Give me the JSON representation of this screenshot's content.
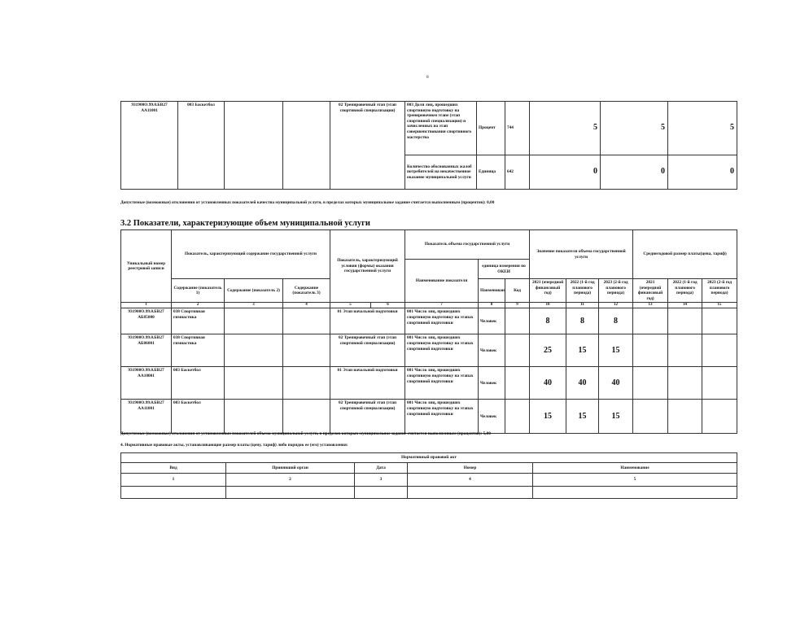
{
  "page_number": "8",
  "quality_table": {
    "row": {
      "reg_number": "931900О.99.0.БВ27 АА11001",
      "content1": "003 Баскетбол",
      "condition": "02 Тренировочный этап (этап спортивной специализации)",
      "indicators": [
        {
          "name": "003 Доля лиц, прошедших спортивную подготовку на тренировочном этапе (этап спортивной специализации) и зачисленных на этап совершенствования спортивного мастерства",
          "unit": "Процент",
          "code": "744",
          "v2021": "5",
          "v2022": "5",
          "v2023": "5"
        },
        {
          "name": "Количество обоснованных жалоб потребителей на некачественное оказание муниципальной услуги",
          "unit": "Единица",
          "code": "642",
          "v2021": "0",
          "v2022": "0",
          "v2023": "0"
        }
      ]
    },
    "deviation_note": "Допустимые (возможные) отклонения от установленных показателей качества муниципальной услуги, в пределах которых муниципальное задание считается выполненным (процентов): 0,00"
  },
  "volume_section": {
    "title": "3.2 Показатели, характеризующие объем муниципальной услуги",
    "headers": {
      "reg_number": "Уникальный номер реестровой записи",
      "content_group": "Показатель, характеризующий содержание государственной услуги",
      "content1": "Содержание (показатель 1)",
      "content2": "Содержание (показатель 2)",
      "content3": "Содержание (показатель 3)",
      "condition_group": "Показатель, характеризующий условия (формы) оказания государственной услуги",
      "volume_group": "Показатель объема государственной услуги",
      "indicator_name": "Наименование показателя",
      "unit_group": "единица измерения по ОКЕИ",
      "unit_name": "Наименование",
      "unit_code": "Код",
      "value_group": "Значение показателя объема государственной услуги",
      "fee_group": "Среднегодовой размер платы(цена, тариф)",
      "y2021": "2021 (очередной финансовый год)",
      "y2022": "2022 (1-й год планового периода)",
      "y2023": "2023 (2-й год планового периода)",
      "col_numbers": [
        "1",
        "2",
        "3",
        "4",
        "5",
        "6",
        "7",
        "8",
        "9",
        "10",
        "11",
        "12",
        "13",
        "14",
        "15"
      ]
    },
    "rows": [
      {
        "reg_number": "931900О.99.0.БВ27 АБ85000",
        "content1": "038 Спортивная гимнастика",
        "condition": "01 Этап начальной подготовки",
        "indicator": "001 Число лиц, прошедших спортивную подготовку на этапах спортивной подготовки",
        "unit": "Человек",
        "v2021": "8",
        "v2022": "8",
        "v2023": "8"
      },
      {
        "reg_number": "931900О.99.0.БВ27 АБ86001",
        "content1": "038 Спортивная гимнастика",
        "condition": "02 Тренировочный этап (этап спортивной специализации)",
        "indicator": "001 Число лиц, прошедших спортивную подготовку на этапах спортивной подготовки",
        "unit": "Человек",
        "v2021": "25",
        "v2022": "15",
        "v2023": "15"
      },
      {
        "reg_number": "931900О.99.0.БВ27 АА10001",
        "content1": "003 Баскетбол",
        "condition": "01 Этап начальной подготовки",
        "indicator": "001 Число лиц, прошедших спортивную подготовку на этапах спортивной подготовки",
        "unit": "Человек",
        "v2021": "40",
        "v2022": "40",
        "v2023": "40"
      },
      {
        "reg_number": "931900О.99.0.БВ27 АА11001",
        "content1": "003 Баскетбол",
        "condition": "02 Тренировочный этап (этап спортивной специализации)",
        "indicator": "001 Число лиц, прошедших спортивную подготовку на этапах спортивной подготовки",
        "unit": "Человек",
        "v2021": "15",
        "v2022": "15",
        "v2023": "15"
      }
    ],
    "deviation_note": "Допустимые (возможные) отклонения от установленных показателей объема муниципальной услуги, в пределах которых муниципальное задание считается выполненным (процентов): 5,00"
  },
  "legal_section": {
    "title": "4. Нормативные правовые акты, устанавливающие размер платы (цену, тариф) либо порядок ее (его) установления:",
    "group": "Нормативный правовой акт",
    "columns": [
      "Вид",
      "Принявший орган",
      "Дата",
      "Номер",
      "Наименование"
    ],
    "col_numbers": [
      "1",
      "2",
      "3",
      "4",
      "5"
    ]
  }
}
